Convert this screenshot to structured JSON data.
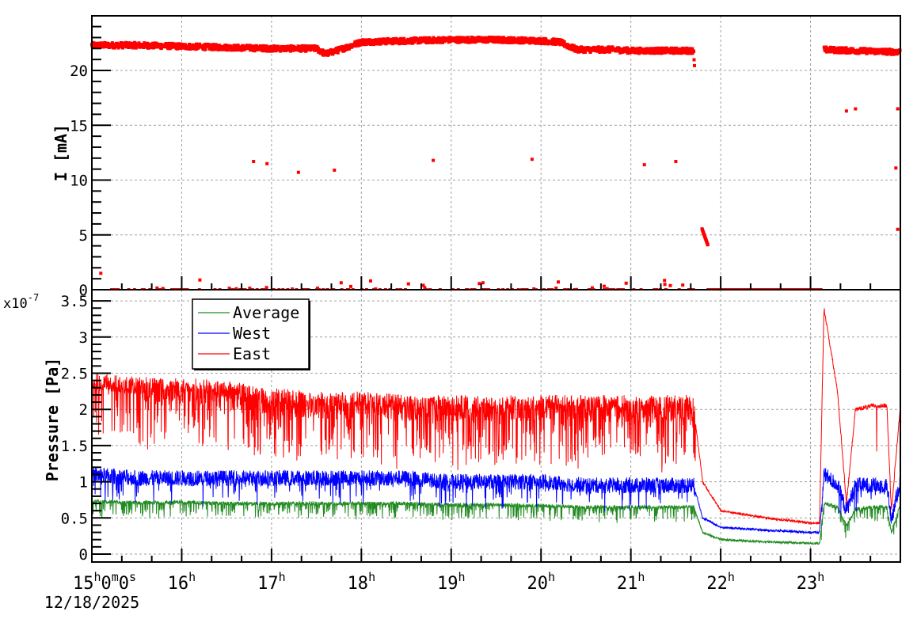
{
  "chart_data": [
    {
      "panel": "top",
      "type": "scatter",
      "title": "",
      "xlabel": "",
      "ylabel": "I [mA]",
      "ylim": [
        0,
        24.5
      ],
      "yticks": [
        0,
        5,
        10,
        15,
        20
      ],
      "grid": true,
      "series": [
        {
          "name": "I",
          "color": "#ff0000",
          "x_hours": [
            15.0,
            15.5,
            16.0,
            16.5,
            17.0,
            17.5,
            17.6,
            17.8,
            18.0,
            18.5,
            19.0,
            19.5,
            20.0,
            20.2,
            20.4,
            20.8,
            21.0,
            21.5,
            21.7,
            21.8,
            21.85,
            22.0,
            22.5,
            23.0,
            23.1,
            23.15,
            23.5,
            23.9,
            24.0
          ],
          "y": [
            22.3,
            22.3,
            22.2,
            22.1,
            22.0,
            22.0,
            21.5,
            22.0,
            22.6,
            22.7,
            22.8,
            22.8,
            22.7,
            22.6,
            21.9,
            21.9,
            21.8,
            21.8,
            21.8,
            5.5,
            4.0,
            0.0,
            0.0,
            0.0,
            0.0,
            21.9,
            21.8,
            21.7,
            21.7
          ]
        }
      ],
      "outliers": [
        {
          "x_hours": 15.1,
          "y": 1.5
        },
        {
          "x_hours": 16.8,
          "y": 11.7
        },
        {
          "x_hours": 16.95,
          "y": 11.5
        },
        {
          "x_hours": 17.3,
          "y": 10.7
        },
        {
          "x_hours": 17.7,
          "y": 10.9
        },
        {
          "x_hours": 18.8,
          "y": 11.8
        },
        {
          "x_hours": 19.9,
          "y": 11.9
        },
        {
          "x_hours": 21.15,
          "y": 11.4
        },
        {
          "x_hours": 21.5,
          "y": 11.7
        },
        {
          "x_hours": 23.4,
          "y": 16.3
        },
        {
          "x_hours": 23.5,
          "y": 16.5
        },
        {
          "x_hours": 23.97,
          "y": 16.5
        },
        {
          "x_hours": 23.95,
          "y": 11.1
        },
        {
          "x_hours": 23.97,
          "y": 5.5
        }
      ]
    },
    {
      "panel": "bottom",
      "type": "line",
      "title": "",
      "xlabel": "",
      "ylabel": "Pressure [Pa]",
      "y_multiplier": "x10^-7",
      "ylim": [
        0,
        3.5
      ],
      "yticks": [
        0,
        0.5,
        1,
        1.5,
        2,
        2.5,
        3,
        3.5
      ],
      "xlim_hours": [
        15,
        24
      ],
      "xticks": [
        "15h0m0s",
        "16h",
        "17h",
        "18h",
        "19h",
        "20h",
        "21h",
        "22h",
        "23h"
      ],
      "x_date": "12/18/2025",
      "grid": true,
      "legend_position": "upper-left",
      "x_hours": [
        15.0,
        15.5,
        16.0,
        16.5,
        17.0,
        17.5,
        18.0,
        18.5,
        19.0,
        19.5,
        20.0,
        20.5,
        21.0,
        21.5,
        21.7,
        21.8,
        22.0,
        22.5,
        23.0,
        23.1,
        23.15,
        23.3,
        23.4,
        23.5,
        23.7,
        23.85,
        23.9,
        24.0
      ],
      "series": [
        {
          "name": "Average",
          "color": "#228b22",
          "values": [
            0.73,
            0.71,
            0.72,
            0.7,
            0.7,
            0.7,
            0.7,
            0.7,
            0.68,
            0.68,
            0.67,
            0.65,
            0.65,
            0.65,
            0.65,
            0.3,
            0.2,
            0.17,
            0.15,
            0.15,
            0.7,
            0.65,
            0.4,
            0.62,
            0.65,
            0.65,
            0.3,
            0.7
          ]
        },
        {
          "name": "West",
          "color": "#0000ff",
          "values": [
            1.1,
            1.05,
            1.05,
            1.05,
            1.05,
            1.05,
            1.05,
            1.05,
            1.0,
            1.0,
            1.0,
            0.95,
            0.95,
            0.95,
            0.95,
            0.5,
            0.37,
            0.33,
            0.3,
            0.3,
            1.1,
            0.95,
            0.6,
            0.95,
            0.95,
            0.95,
            0.5,
            1.0
          ]
        },
        {
          "name": "East",
          "color": "#ff0000",
          "values": [
            2.3,
            2.25,
            2.25,
            2.2,
            2.1,
            2.05,
            2.05,
            2.0,
            2.0,
            2.0,
            2.0,
            2.0,
            2.0,
            2.0,
            2.0,
            1.0,
            0.6,
            0.5,
            0.43,
            0.43,
            3.4,
            2.25,
            0.7,
            2.0,
            2.05,
            2.05,
            0.6,
            2.05
          ]
        }
      ]
    }
  ],
  "top_panel": {
    "ylabel": "I [mA]",
    "yticks": [
      {
        "value": 0,
        "label": "0"
      },
      {
        "value": 5,
        "label": "5"
      },
      {
        "value": 10,
        "label": "10"
      },
      {
        "value": 15,
        "label": "15"
      },
      {
        "value": 20,
        "label": "20"
      }
    ]
  },
  "bottom_panel": {
    "ylabel": "Pressure [Pa]",
    "multiplier_base": "x10",
    "multiplier_exp": "-7",
    "yticks": [
      {
        "value": 0,
        "label": "0"
      },
      {
        "value": 0.5,
        "label": "0.5"
      },
      {
        "value": 1,
        "label": "1"
      },
      {
        "value": 1.5,
        "label": "1.5"
      },
      {
        "value": 2,
        "label": "2"
      },
      {
        "value": 2.5,
        "label": "2.5"
      },
      {
        "value": 3,
        "label": "3"
      },
      {
        "value": 3.5,
        "label": "3.5"
      }
    ],
    "legend": [
      {
        "label": "Average",
        "color": "#228b22"
      },
      {
        "label": "West",
        "color": "#0000ff"
      },
      {
        "label": "East",
        "color": "#ff0000"
      }
    ]
  },
  "x_axis": {
    "ticks": [
      {
        "hour": 15,
        "main": "15",
        "sup1": "h",
        "rest": "0",
        "sup2": "m",
        "rest2": "0",
        "sup3": "s"
      },
      {
        "hour": 16,
        "main": "16",
        "sup1": "h"
      },
      {
        "hour": 17,
        "main": "17",
        "sup1": "h"
      },
      {
        "hour": 18,
        "main": "18",
        "sup1": "h"
      },
      {
        "hour": 19,
        "main": "19",
        "sup1": "h"
      },
      {
        "hour": 20,
        "main": "20",
        "sup1": "h"
      },
      {
        "hour": 21,
        "main": "21",
        "sup1": "h"
      },
      {
        "hour": 22,
        "main": "22",
        "sup1": "h"
      },
      {
        "hour": 23,
        "main": "23",
        "sup1": "h"
      }
    ],
    "date": "12/18/2025"
  },
  "colors": {
    "axis": "#000000",
    "grid": "#a0a0a0",
    "current": "#ff0000",
    "average": "#228b22",
    "west": "#0000ff",
    "east": "#ff0000"
  }
}
